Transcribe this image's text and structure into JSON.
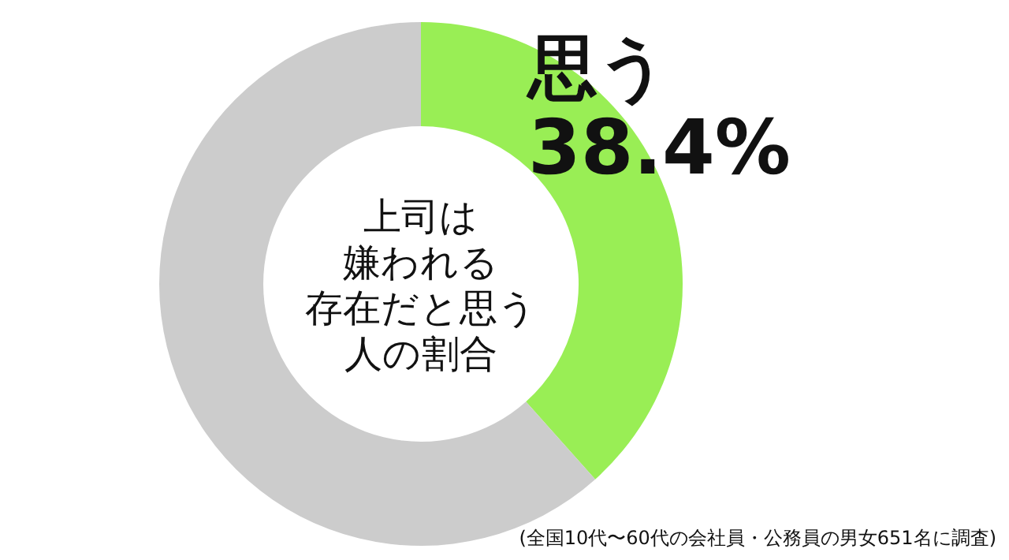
{
  "chart_data": {
    "type": "donut",
    "title": "上司は嫌われる存在だと思う人の割合",
    "categories": [
      "思う",
      null
    ],
    "values": [
      38.4,
      61.6
    ],
    "value_labels": [
      "38.4%",
      null
    ],
    "colors": [
      "#99ee55",
      "#cccccc"
    ],
    "annotations": [
      "(全国10代〜60代の会社員・公務員の男女651名に調査)"
    ]
  }
}
